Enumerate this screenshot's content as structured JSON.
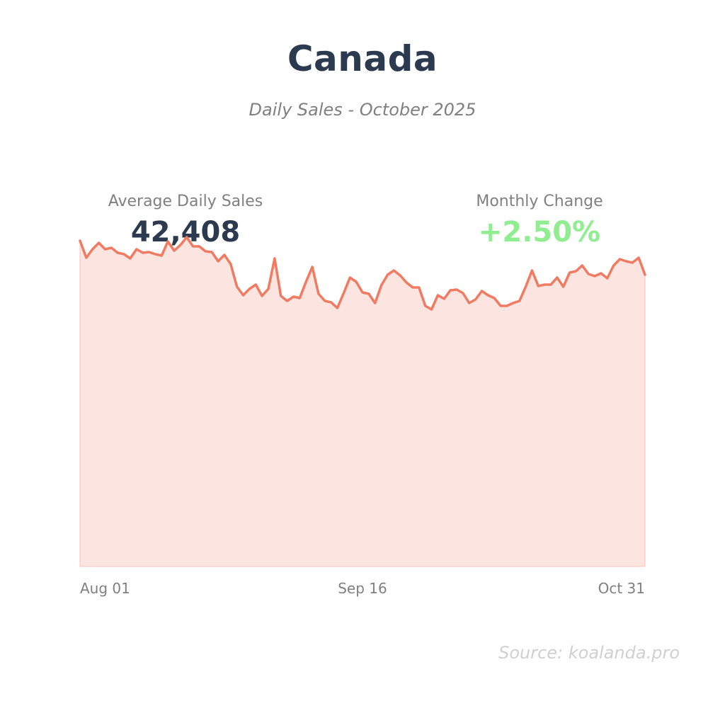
{
  "header": {
    "title": "Canada",
    "subtitle": "Daily Sales - October 2025"
  },
  "kpis": {
    "average_label": "Average Daily Sales",
    "average_value": "42,408",
    "change_label": "Monthly Change",
    "change_value": "+2.50%",
    "change_color": "#90ee90"
  },
  "source": "Source: koalanda.pro",
  "colors": {
    "line": "#f07b62",
    "area": "#fce5e0",
    "axis_text": "#808080"
  },
  "chart_data": {
    "type": "area",
    "x_tick_labels": [
      "Aug 01",
      "Sep 16",
      "Oct 31"
    ],
    "x_start": "Aug 01",
    "x_end": "Oct 31",
    "ylim": [
      0,
      50000
    ],
    "grid": false,
    "values": [
      46000,
      43600,
      44800,
      45700,
      44800,
      45000,
      44300,
      44100,
      43500,
      44800,
      44300,
      44400,
      44100,
      43900,
      45900,
      44600,
      45400,
      46500,
      45200,
      45200,
      44500,
      44400,
      43100,
      44000,
      42700,
      39500,
      38300,
      39200,
      39800,
      38200,
      39200,
      43500,
      38200,
      37500,
      38100,
      37900,
      40200,
      42300,
      38500,
      37500,
      37300,
      36500,
      38600,
      40800,
      40200,
      38700,
      38500,
      37200,
      39700,
      41200,
      41800,
      41100,
      40100,
      39400,
      39400,
      36800,
      36300,
      38300,
      37800,
      39000,
      39100,
      38600,
      37200,
      37700,
      38900,
      38300,
      37900,
      36800,
      36800,
      37200,
      37500,
      39500,
      41800,
      39600,
      39800,
      39800,
      40800,
      39500,
      41500,
      41700,
      42500,
      41300,
      41000,
      41400,
      40700,
      42500,
      43400,
      43100,
      42900,
      43600,
      41200
    ]
  }
}
